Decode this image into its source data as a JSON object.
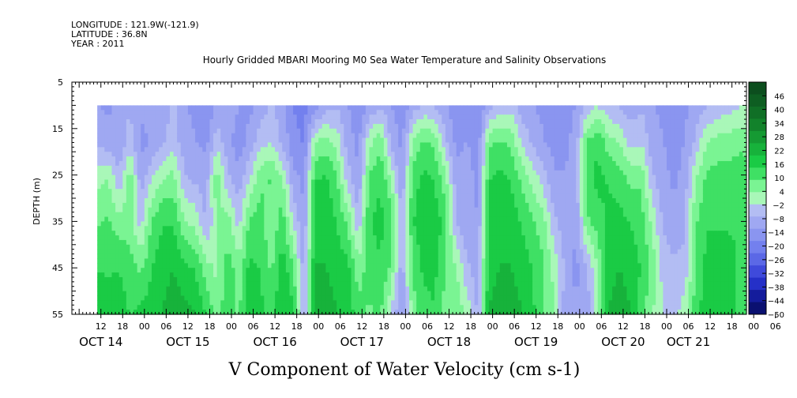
{
  "header": {
    "longitude": "LONGITUDE : 121.9W(-121.9)",
    "latitude": "LATITUDE : 36.8N",
    "year": "YEAR : 2011"
  },
  "chart_data": {
    "type": "heatmap",
    "title": "Hourly Gridded MBARI Mooring M0 Sea Water Temperature and Salinity Observations",
    "xlabel": "V Component of Water Velocity (cm s-1)",
    "ylabel": "DEPTH (m)",
    "ylim": [
      5,
      55
    ],
    "y_reversed": true,
    "y_ticks": [
      "5",
      "15",
      "25",
      "35",
      "45",
      "55"
    ],
    "x_range_hours": [
      -20,
      166
    ],
    "x_hour_ticks": [
      {
        "h": -12,
        "label": "12"
      },
      {
        "h": -6,
        "label": "18"
      },
      {
        "h": 0,
        "label": "00"
      },
      {
        "h": 6,
        "label": "06"
      },
      {
        "h": 12,
        "label": "12"
      },
      {
        "h": 18,
        "label": "18"
      },
      {
        "h": 24,
        "label": "00"
      },
      {
        "h": 30,
        "label": "06"
      },
      {
        "h": 36,
        "label": "12"
      },
      {
        "h": 42,
        "label": "18"
      },
      {
        "h": 48,
        "label": "00"
      },
      {
        "h": 54,
        "label": "06"
      },
      {
        "h": 60,
        "label": "12"
      },
      {
        "h": 66,
        "label": "18"
      },
      {
        "h": 72,
        "label": "00"
      },
      {
        "h": 78,
        "label": "06"
      },
      {
        "h": 84,
        "label": "12"
      },
      {
        "h": 90,
        "label": "18"
      },
      {
        "h": 96,
        "label": "00"
      },
      {
        "h": 102,
        "label": "06"
      },
      {
        "h": 108,
        "label": "12"
      },
      {
        "h": 114,
        "label": "18"
      },
      {
        "h": 120,
        "label": "00"
      },
      {
        "h": 126,
        "label": "06"
      },
      {
        "h": 132,
        "label": "12"
      },
      {
        "h": 138,
        "label": "18"
      },
      {
        "h": 144,
        "label": "00"
      },
      {
        "h": 150,
        "label": "06"
      },
      {
        "h": 156,
        "label": "12"
      },
      {
        "h": 162,
        "label": "18"
      },
      {
        "h": 168,
        "label": "00"
      },
      {
        "h": 174,
        "label": "06"
      }
    ],
    "x_date_labels": [
      {
        "h": -12,
        "label": "OCT 14"
      },
      {
        "h": 12,
        "label": "OCT 15"
      },
      {
        "h": 36,
        "label": "OCT 16"
      },
      {
        "h": 60,
        "label": "OCT 17"
      },
      {
        "h": 84,
        "label": "OCT 18"
      },
      {
        "h": 108,
        "label": "OCT 19"
      },
      {
        "h": 132,
        "label": "OCT 20"
      },
      {
        "h": 150,
        "label": "OCT 21"
      }
    ],
    "data_depth_range": [
      10,
      55
    ],
    "data_time_range_hours": [
      -13,
      166
    ],
    "colorbar": {
      "levels": [
        "46",
        "40",
        "34",
        "28",
        "22",
        "16",
        "10",
        "4",
        "-2",
        "-8",
        "-14",
        "-20",
        "-26",
        "-32",
        "-38",
        "-44",
        "-50"
      ],
      "min": -50,
      "max": 52,
      "colors_high_to_low": [
        "#0c4e1e",
        "#0e5e22",
        "#106f26",
        "#12822b",
        "#159a33",
        "#17b23b",
        "#1acb45",
        "#3fe064",
        "#7af493",
        "#a9f7b8",
        "#b3bdf3",
        "#9fa8f2",
        "#8a95f0",
        "#7380ee",
        "#5b68e6",
        "#3f4adb",
        "#2530c8",
        "#141c9c",
        "#0a1070"
      ]
    },
    "columns": [
      {
        "t": -13,
        "v": [
          -12,
          -8,
          2,
          8,
          14,
          18
        ]
      },
      {
        "t": -10,
        "v": [
          -14,
          -10,
          4,
          10,
          14,
          16
        ]
      },
      {
        "t": -7,
        "v": [
          -10,
          -12,
          -6,
          6,
          14,
          18
        ]
      },
      {
        "t": -4,
        "v": [
          -8,
          -4,
          8,
          6,
          12,
          14
        ]
      },
      {
        "t": -1,
        "v": [
          -12,
          -14,
          -10,
          -4,
          8,
          16
        ]
      },
      {
        "t": 2,
        "v": [
          -8,
          -12,
          -2,
          10,
          14,
          18
        ]
      },
      {
        "t": 5,
        "v": [
          -10,
          -8,
          4,
          14,
          18,
          20
        ]
      },
      {
        "t": 8,
        "v": [
          -6,
          -4,
          6,
          14,
          20,
          22
        ]
      },
      {
        "t": 11,
        "v": [
          -12,
          -10,
          -6,
          4,
          16,
          22
        ]
      },
      {
        "t": 14,
        "v": [
          -14,
          -12,
          -8,
          2,
          14,
          20
        ]
      },
      {
        "t": 17,
        "v": [
          -16,
          -14,
          -10,
          -8,
          6,
          14
        ]
      },
      {
        "t": 20,
        "v": [
          -12,
          -4,
          8,
          4,
          2,
          6
        ]
      },
      {
        "t": 23,
        "v": [
          -8,
          -10,
          -6,
          6,
          12,
          14
        ]
      },
      {
        "t": 26,
        "v": [
          -12,
          -16,
          -10,
          -4,
          6,
          8
        ]
      },
      {
        "t": 29,
        "v": [
          -14,
          -10,
          -2,
          10,
          16,
          18
        ]
      },
      {
        "t": 32,
        "v": [
          -10,
          -4,
          8,
          12,
          14,
          16
        ]
      },
      {
        "t": 35,
        "v": [
          -6,
          -2,
          10,
          4,
          8,
          12
        ]
      },
      {
        "t": 38,
        "v": [
          -10,
          -8,
          4,
          12,
          18,
          20
        ]
      },
      {
        "t": 41,
        "v": [
          -18,
          -16,
          -10,
          -2,
          10,
          16
        ]
      },
      {
        "t": 44,
        "v": [
          -20,
          -18,
          -14,
          -12,
          -10,
          -8
        ]
      },
      {
        "t": 47,
        "v": [
          -16,
          4,
          14,
          16,
          20,
          22
        ]
      },
      {
        "t": 50,
        "v": [
          -10,
          6,
          16,
          18,
          20,
          22
        ]
      },
      {
        "t": 53,
        "v": [
          -8,
          2,
          10,
          14,
          18,
          20
        ]
      },
      {
        "t": 56,
        "v": [
          -12,
          -10,
          -4,
          8,
          16,
          18
        ]
      },
      {
        "t": 59,
        "v": [
          -16,
          -14,
          -12,
          -6,
          6,
          12
        ]
      },
      {
        "t": 62,
        "v": [
          -12,
          2,
          10,
          14,
          12,
          8
        ]
      },
      {
        "t": 65,
        "v": [
          -8,
          8,
          14,
          16,
          14,
          10
        ]
      },
      {
        "t": 68,
        "v": [
          -12,
          -8,
          4,
          12,
          8,
          -2
        ]
      },
      {
        "t": 71,
        "v": [
          -16,
          -14,
          -12,
          -8,
          -10,
          -14
        ]
      },
      {
        "t": 74,
        "v": [
          -10,
          4,
          12,
          14,
          10,
          6
        ]
      },
      {
        "t": 77,
        "v": [
          -6,
          10,
          16,
          18,
          16,
          12
        ]
      },
      {
        "t": 80,
        "v": [
          -8,
          8,
          14,
          18,
          16,
          14
        ]
      },
      {
        "t": 83,
        "v": [
          -12,
          -6,
          6,
          12,
          10,
          6
        ]
      },
      {
        "t": 86,
        "v": [
          -16,
          -14,
          -10,
          -8,
          4,
          8
        ]
      },
      {
        "t": 89,
        "v": [
          -14,
          -12,
          -10,
          -12,
          -6,
          2
        ]
      },
      {
        "t": 92,
        "v": [
          -18,
          -16,
          -14,
          -12,
          -10,
          -8
        ]
      },
      {
        "t": 95,
        "v": [
          -10,
          8,
          14,
          16,
          18,
          20
        ]
      },
      {
        "t": 98,
        "v": [
          -6,
          10,
          16,
          18,
          20,
          22
        ]
      },
      {
        "t": 101,
        "v": [
          -4,
          8,
          14,
          18,
          20,
          22
        ]
      },
      {
        "t": 104,
        "v": [
          -10,
          -2,
          8,
          14,
          18,
          20
        ]
      },
      {
        "t": 107,
        "v": [
          -12,
          -8,
          2,
          10,
          14,
          16
        ]
      },
      {
        "t": 110,
        "v": [
          -14,
          -12,
          -4,
          6,
          10,
          8
        ]
      },
      {
        "t": 113,
        "v": [
          -16,
          -14,
          -12,
          -6,
          2,
          4
        ]
      },
      {
        "t": 116,
        "v": [
          -16,
          -14,
          -12,
          -10,
          -8,
          -10
        ]
      },
      {
        "t": 119,
        "v": [
          -12,
          -10,
          -8,
          -12,
          -14,
          -12
        ]
      },
      {
        "t": 122,
        "v": [
          -6,
          10,
          12,
          8,
          -8,
          -10
        ]
      },
      {
        "t": 125,
        "v": [
          -2,
          14,
          16,
          12,
          4,
          2
        ]
      },
      {
        "t": 128,
        "v": [
          -6,
          6,
          14,
          16,
          18,
          20
        ]
      },
      {
        "t": 131,
        "v": [
          -8,
          4,
          12,
          16,
          20,
          22
        ]
      },
      {
        "t": 134,
        "v": [
          -10,
          -4,
          8,
          14,
          18,
          20
        ]
      },
      {
        "t": 137,
        "v": [
          -8,
          -2,
          8,
          12,
          14,
          12
        ]
      },
      {
        "t": 140,
        "v": [
          -12,
          -10,
          -6,
          2,
          8,
          4
        ]
      },
      {
        "t": 143,
        "v": [
          -14,
          -12,
          -10,
          -8,
          -4,
          -2
        ]
      },
      {
        "t": 146,
        "v": [
          -18,
          -16,
          -14,
          -10,
          -6,
          -4
        ]
      },
      {
        "t": 149,
        "v": [
          -14,
          -12,
          -10,
          -8,
          -6,
          2
        ]
      },
      {
        "t": 152,
        "v": [
          -10,
          -6,
          4,
          8,
          10,
          12
        ]
      },
      {
        "t": 155,
        "v": [
          -8,
          4,
          10,
          14,
          16,
          18
        ]
      },
      {
        "t": 158,
        "v": [
          -6,
          6,
          12,
          14,
          16,
          18
        ]
      },
      {
        "t": 161,
        "v": [
          -4,
          6,
          12,
          14,
          16,
          16
        ]
      },
      {
        "t": 164,
        "v": [
          -2,
          8,
          12,
          14,
          14,
          14
        ]
      },
      {
        "t": 166,
        "v": [
          -2,
          8,
          10,
          12,
          12,
          12
        ]
      }
    ],
    "column_depths": [
      10,
      18,
      26,
      35,
      45,
      55
    ]
  }
}
